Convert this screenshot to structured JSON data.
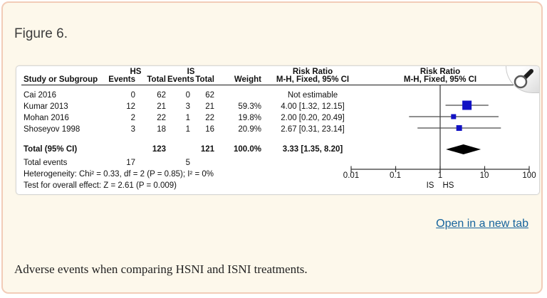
{
  "figure": {
    "label": "Figure 6.",
    "open_link": "Open in a new tab",
    "caption": "Adverse events when comparing HSNI and ISNI treatments."
  },
  "headers": {
    "study": "Study or Subgroup",
    "group1": "HS",
    "group2": "IS",
    "events": "Events",
    "total": "Total",
    "weight": "Weight",
    "risk_ratio": "Risk Ratio",
    "method": "M-H, Fixed, 95% CI"
  },
  "colors": {
    "card_bg": "#fdf8eb",
    "card_border": "#f2ccb8",
    "link": "#15639c",
    "square": "#1212c4",
    "ci_line": "#4a4a4a",
    "axis": "#333333",
    "diamond": "#000000"
  },
  "chart_data": {
    "type": "forest",
    "effect_measure": "Risk Ratio",
    "method": "M-H, Fixed, 95% CI",
    "x_scale": "log10",
    "x_ticks": [
      0.01,
      0.1,
      1,
      10,
      100
    ],
    "x_tick_labels": [
      "0.01",
      "0.1",
      "1",
      "10",
      "100"
    ],
    "axis_left_label": "IS",
    "axis_right_label": "HS",
    "studies": [
      {
        "name": "Cai 2016",
        "hs_events": "0",
        "hs_total": "62",
        "is_events": "0",
        "is_total": "62",
        "weight": "",
        "weight_value": null,
        "rr_text": "Not estimable",
        "rr": null,
        "ci_low": null,
        "ci_high": null
      },
      {
        "name": "Kumar 2013",
        "hs_events": "12",
        "hs_total": "21",
        "is_events": "3",
        "is_total": "21",
        "weight": "59.3%",
        "weight_value": 59.3,
        "rr_text": "4.00 [1.32, 12.15]",
        "rr": 4.0,
        "ci_low": 1.32,
        "ci_high": 12.15
      },
      {
        "name": "Mohan 2016",
        "hs_events": "2",
        "hs_total": "22",
        "is_events": "1",
        "is_total": "22",
        "weight": "19.8%",
        "weight_value": 19.8,
        "rr_text": "2.00 [0.20, 20.49]",
        "rr": 2.0,
        "ci_low": 0.2,
        "ci_high": 20.49
      },
      {
        "name": "Shoseyov 1998",
        "hs_events": "3",
        "hs_total": "18",
        "is_events": "1",
        "is_total": "16",
        "weight": "20.9%",
        "weight_value": 20.9,
        "rr_text": "2.67 [0.31, 23.14]",
        "rr": 2.67,
        "ci_low": 0.31,
        "ci_high": 23.14
      }
    ],
    "total": {
      "label": "Total (95% CI)",
      "hs_total": "123",
      "is_total": "121",
      "weight": "100.0%",
      "rr_text": "3.33 [1.35, 8.20]",
      "rr": 3.33,
      "ci_low": 1.35,
      "ci_high": 8.2
    },
    "total_events": {
      "label": "Total events",
      "hs": "17",
      "is": "5"
    },
    "heterogeneity": "Heterogeneity: Chi² = 0.33, df = 2 (P = 0.85); I² = 0%",
    "overall_effect": "Test for overall effect: Z = 2.61 (P = 0.009)"
  }
}
